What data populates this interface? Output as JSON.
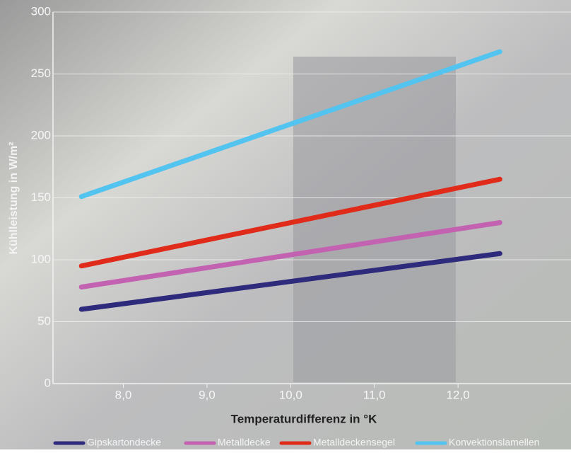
{
  "chart_data": {
    "type": "line",
    "x_label": "Temperaturdifferenz in °K",
    "y_label": "Kühlleistung in W/m²",
    "xlim": [
      7.16,
      13.35
    ],
    "xticks": [
      {
        "value": 8,
        "label": "8,0"
      },
      {
        "value": 9,
        "label": "9,0"
      },
      {
        "value": 10,
        "label": "10,0"
      },
      {
        "value": 11,
        "label": "11,0"
      },
      {
        "value": 12,
        "label": "12,0"
      }
    ],
    "ylim": [
      0,
      300
    ],
    "yticks": [
      0,
      50,
      100,
      150,
      200,
      250,
      300
    ],
    "grid": true,
    "legend": "bottom",
    "x": [
      7.5,
      12.5
    ],
    "series": [
      {
        "name": "Gipskartondecke",
        "color": "#2e2a7c",
        "values": [
          60,
          105
        ]
      },
      {
        "name": "Metalldecke",
        "color": "#c462b2",
        "values": [
          78,
          130
        ]
      },
      {
        "name": "Metalldeckensegel",
        "color": "#e02a1a",
        "values": [
          95,
          165
        ]
      },
      {
        "name": "Konvektionslamellen",
        "color": "#52c4ef",
        "values": [
          151,
          268
        ]
      }
    ]
  }
}
